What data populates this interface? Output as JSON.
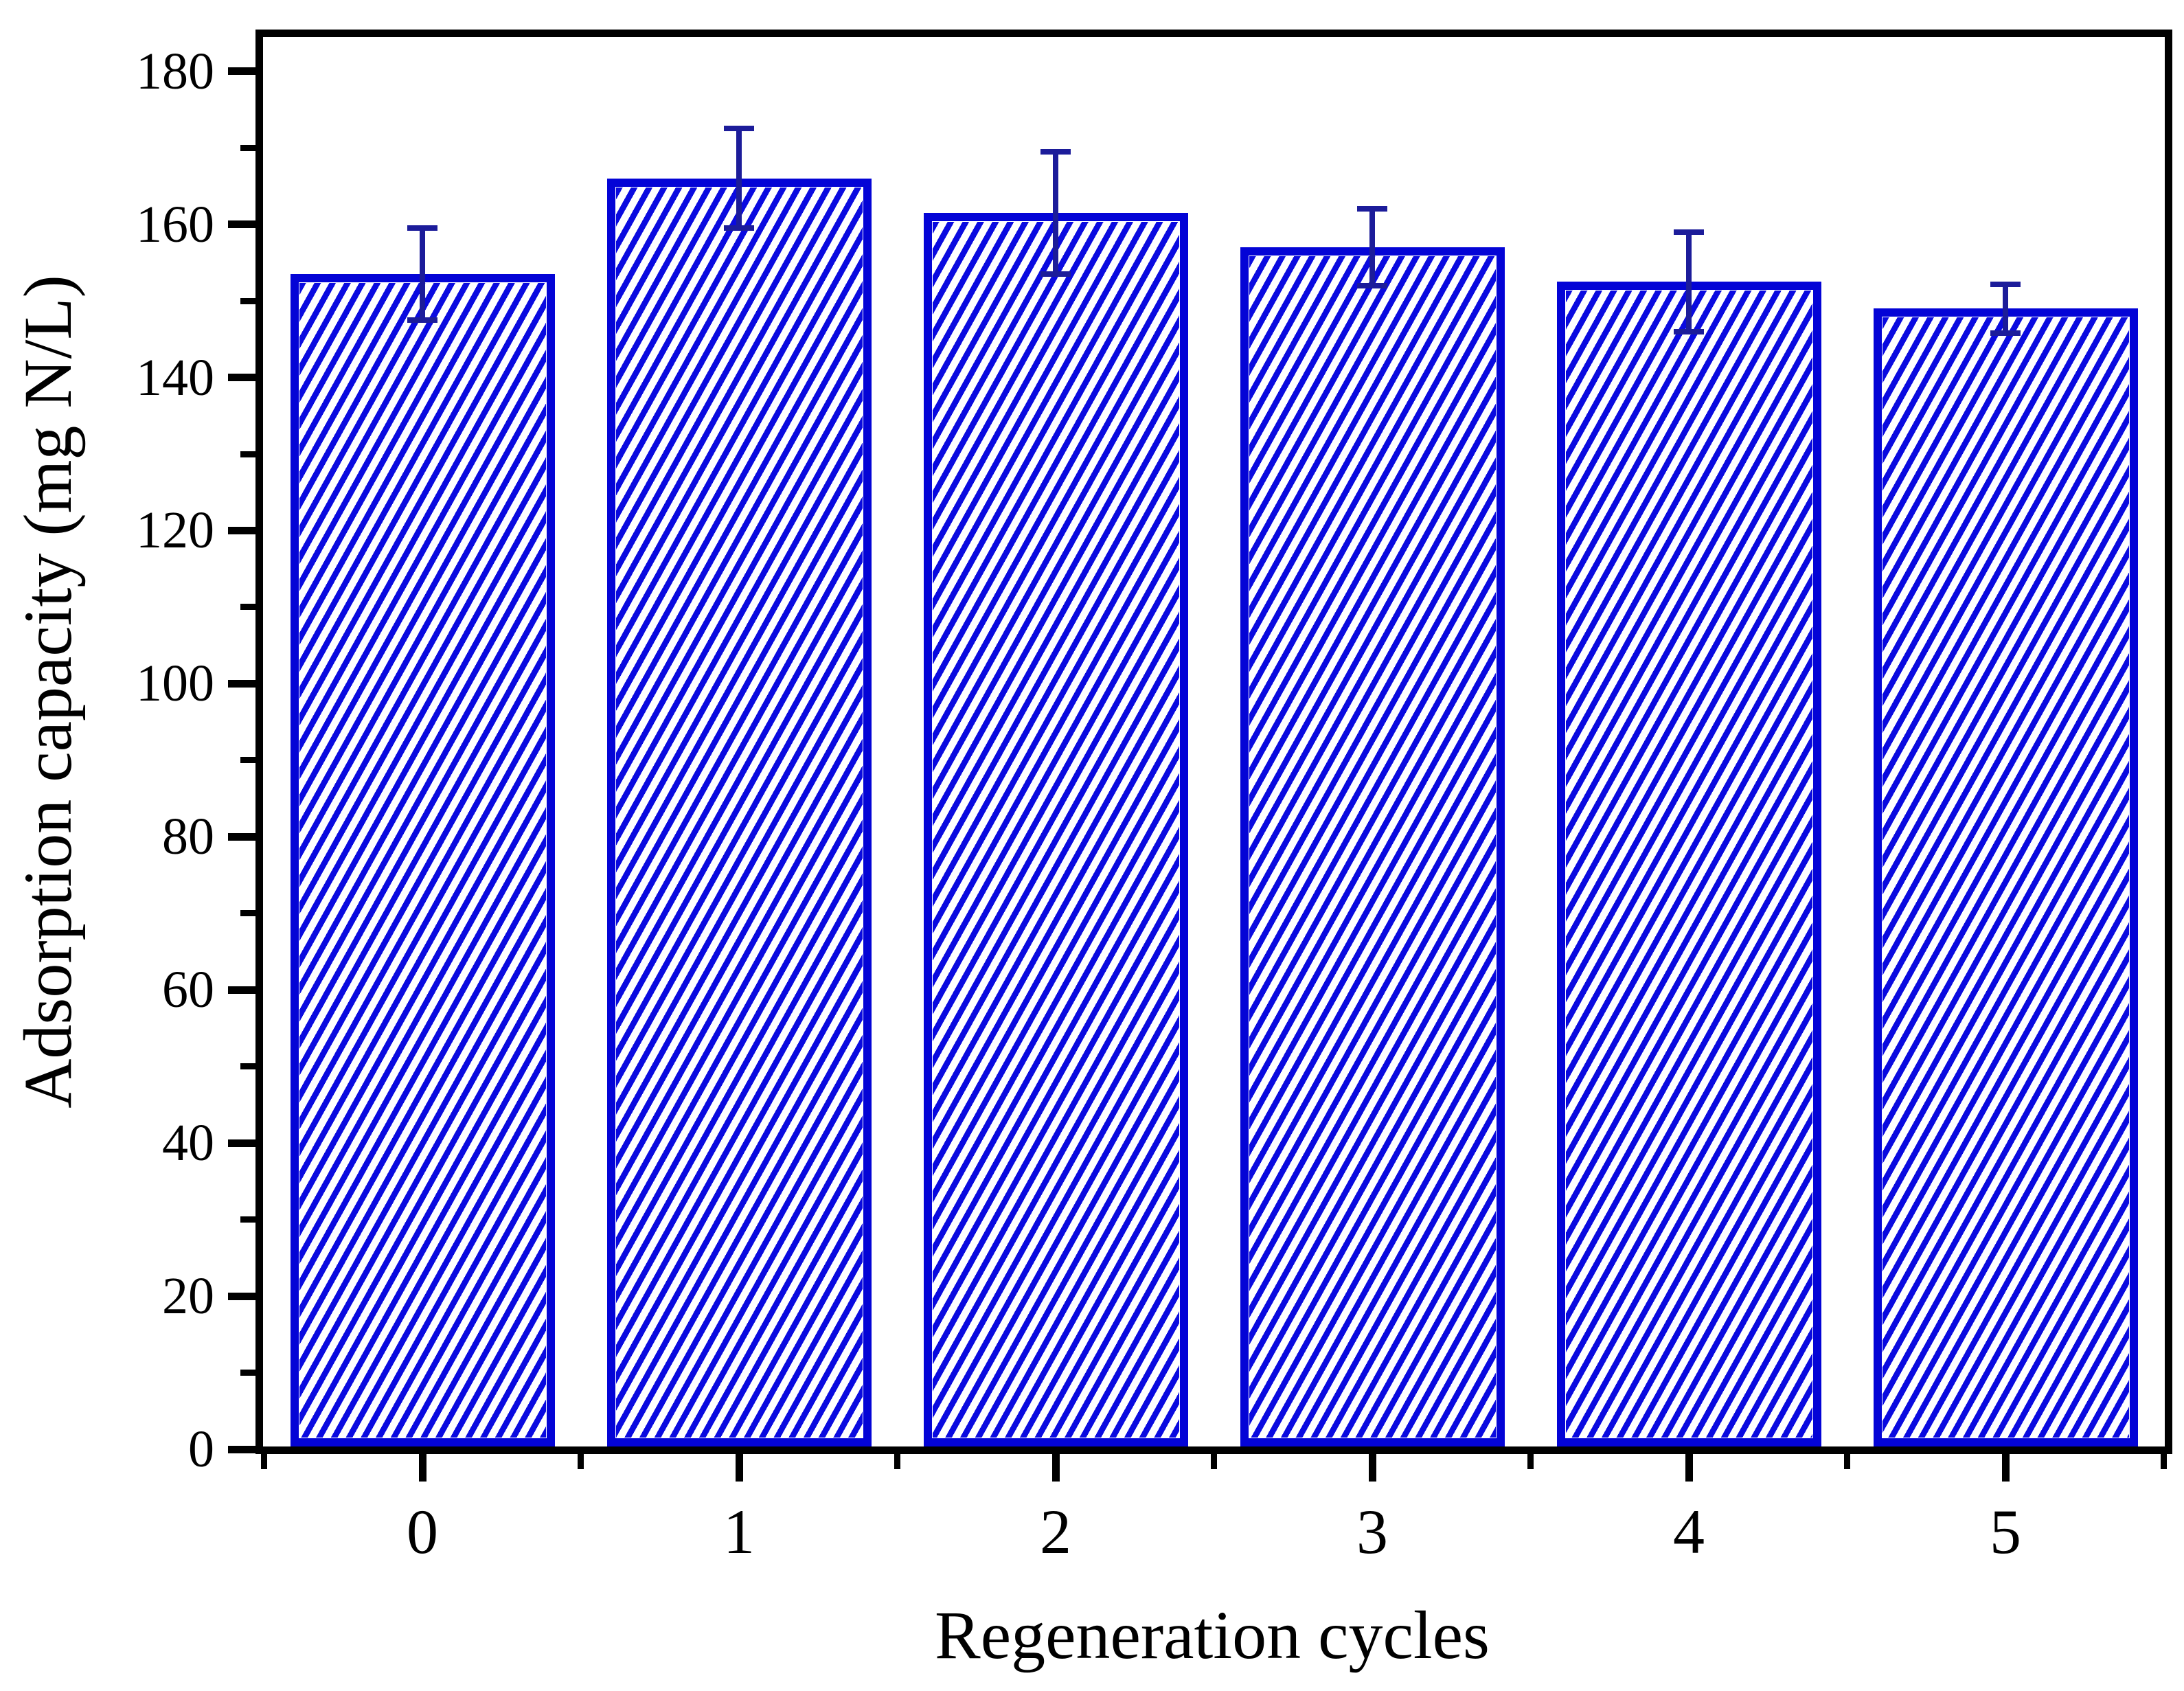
{
  "chart_data": {
    "type": "bar",
    "xlabel": "Regeneration cycles",
    "ylabel": "Adsorption capacity (mg N/L)",
    "categories": [
      "0",
      "1",
      "2",
      "3",
      "4",
      "5"
    ],
    "values": [
      153.5,
      166,
      161.5,
      157,
      152.5,
      149
    ],
    "error_bars": [
      6,
      6.5,
      8,
      5,
      6.5,
      3.2
    ],
    "ylim": [
      0,
      185
    ],
    "y_major_ticks": [
      0,
      20,
      40,
      60,
      80,
      100,
      120,
      140,
      160,
      180
    ],
    "y_minor_tick_step": 10,
    "grid": false,
    "legend": null,
    "bar_fill": "white",
    "bar_hatch_pattern": "///",
    "colors": {
      "bar_border": "#0404d6",
      "bar_hatch": "#0a0ae0",
      "error_bar": "#1c1c9a",
      "axis": "#000000",
      "background": "#ffffff"
    }
  }
}
